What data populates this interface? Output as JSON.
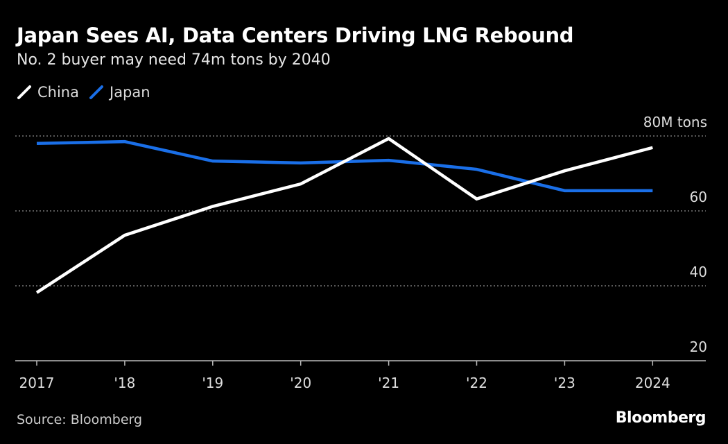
{
  "title": "Japan Sees AI, Data Centers Driving LNG Rebound",
  "subtitle": "No. 2 buyer may need 74m tons by 2040",
  "source": "Source: Bloomberg",
  "logo": "Bloomberg",
  "chart_data": {
    "type": "line",
    "categories": [
      "2017",
      "'18",
      "'19",
      "'20",
      "'21",
      "'22",
      "'23",
      "2024"
    ],
    "series": [
      {
        "name": "China",
        "color": "#ffffff",
        "values": [
          38.2,
          53.5,
          61.2,
          67.2,
          79.3,
          63.2,
          70.7,
          76.9
        ]
      },
      {
        "name": "Japan",
        "color": "#1a6fe8",
        "values": [
          78.0,
          78.5,
          73.3,
          72.8,
          73.5,
          71.1,
          65.4,
          65.4
        ]
      }
    ],
    "ylim": [
      20,
      80
    ],
    "yticks": [
      20,
      40,
      60,
      80
    ],
    "ytick_labels": [
      "20",
      "40",
      "60",
      "80M tons"
    ],
    "grid": true,
    "legend": "top-left"
  }
}
